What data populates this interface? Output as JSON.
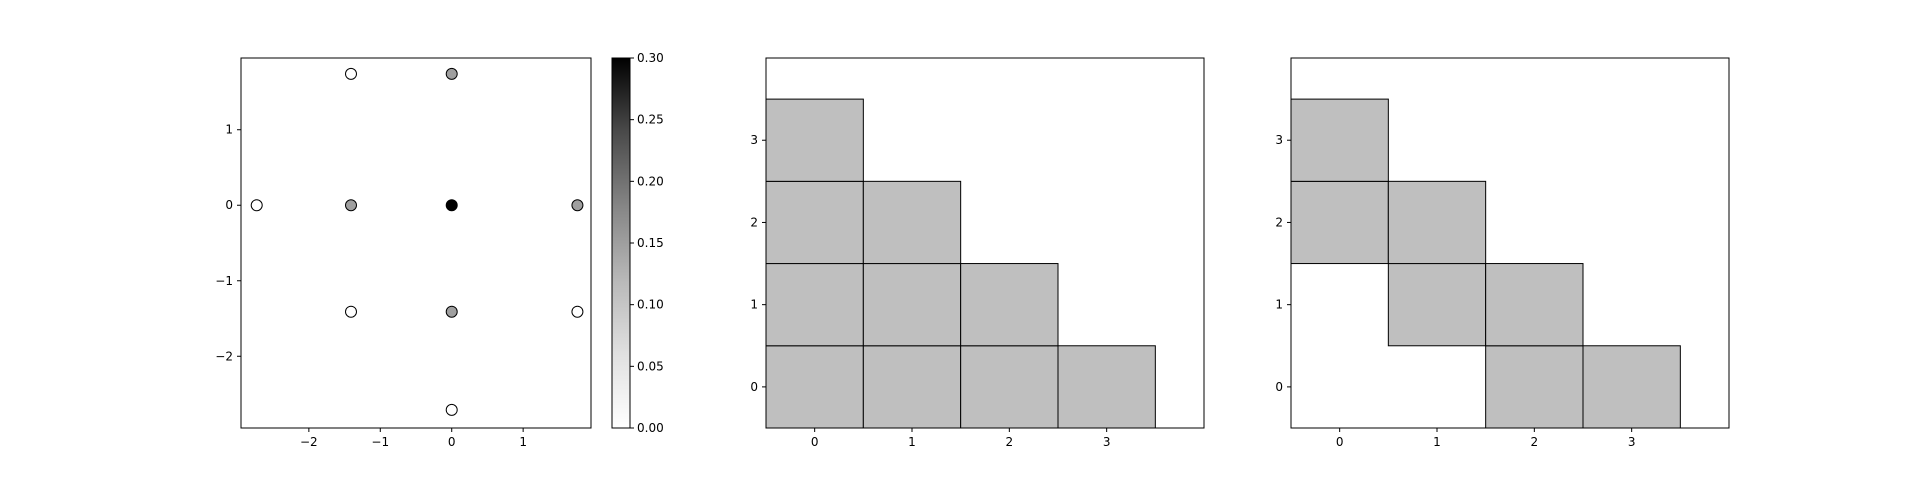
{
  "chart_data": [
    {
      "type": "scatter",
      "xlim": [
        -2.95,
        1.95
      ],
      "ylim": [
        -2.95,
        1.95
      ],
      "xticks": [
        -2,
        -1,
        0,
        1
      ],
      "yticks": [
        -2,
        -1,
        0,
        1
      ],
      "xtick_labels": [
        "−2",
        "−1",
        "0",
        "1"
      ],
      "ytick_labels": [
        "−2",
        "−1",
        "0",
        "1"
      ],
      "points": [
        {
          "x": -2.73,
          "y": 0.0,
          "value": 0.0
        },
        {
          "x": -1.41,
          "y": 1.74,
          "value": 0.0
        },
        {
          "x": -1.41,
          "y": 0.0,
          "value": 0.15
        },
        {
          "x": -1.41,
          "y": -1.41,
          "value": 0.0
        },
        {
          "x": 0.0,
          "y": 1.74,
          "value": 0.15
        },
        {
          "x": 0.0,
          "y": 0.0,
          "value": 0.3
        },
        {
          "x": 0.0,
          "y": -1.41,
          "value": 0.15
        },
        {
          "x": 0.0,
          "y": -2.71,
          "value": 0.0
        },
        {
          "x": 1.76,
          "y": 0.0,
          "value": 0.15
        },
        {
          "x": 1.76,
          "y": -1.41,
          "value": 0.0
        }
      ],
      "colorbar": {
        "colormap": "Greys",
        "range": [
          0.0,
          0.3
        ],
        "ticks": [
          0.0,
          0.05,
          0.1,
          0.15,
          0.2,
          0.25,
          0.3
        ],
        "tick_labels": [
          "0.00",
          "0.05",
          "0.10",
          "0.15",
          "0.20",
          "0.25",
          "0.30"
        ]
      },
      "grid": false
    },
    {
      "type": "heatmap",
      "xlim": [
        -0.5,
        4.0
      ],
      "ylim": [
        -0.5,
        4.0
      ],
      "xticks": [
        0,
        1,
        2,
        3
      ],
      "yticks": [
        0,
        1,
        2,
        3
      ],
      "xtick_labels": [
        "0",
        "1",
        "2",
        "3"
      ],
      "ytick_labels": [
        "0",
        "1",
        "2",
        "3"
      ],
      "cells": [
        [
          0,
          0
        ],
        [
          1,
          0
        ],
        [
          2,
          0
        ],
        [
          3,
          0
        ],
        [
          0,
          1
        ],
        [
          1,
          1
        ],
        [
          2,
          1
        ],
        [
          0,
          2
        ],
        [
          1,
          2
        ],
        [
          0,
          3
        ]
      ],
      "cell_color": "#bfbfbf",
      "grid": false
    },
    {
      "type": "heatmap",
      "xlim": [
        -0.5,
        4.0
      ],
      "ylim": [
        -0.5,
        4.0
      ],
      "xticks": [
        0,
        1,
        2,
        3
      ],
      "yticks": [
        0,
        1,
        2,
        3
      ],
      "xtick_labels": [
        "0",
        "1",
        "2",
        "3"
      ],
      "ytick_labels": [
        "0",
        "1",
        "2",
        "3"
      ],
      "cells": [
        [
          2,
          0
        ],
        [
          3,
          0
        ],
        [
          1,
          1
        ],
        [
          2,
          1
        ],
        [
          0,
          2
        ],
        [
          1,
          2
        ],
        [
          0,
          3
        ]
      ],
      "cell_color": "#bfbfbf",
      "grid": false
    }
  ]
}
